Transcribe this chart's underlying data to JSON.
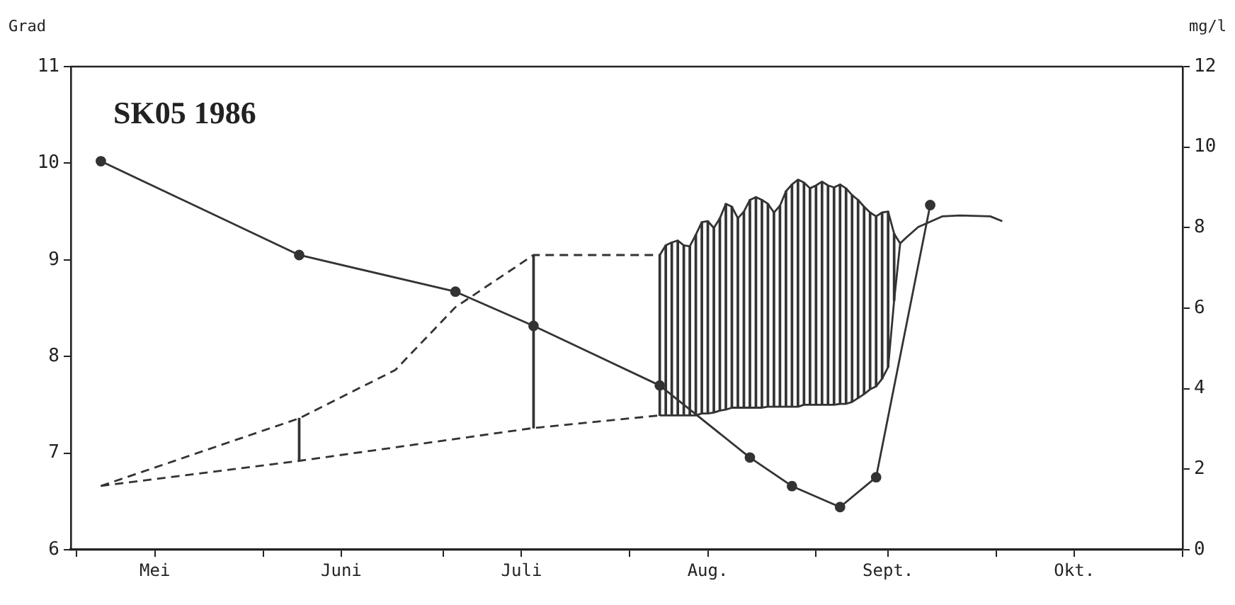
{
  "chart_data": {
    "type": "line",
    "title": "SK05 1986",
    "ylabel": "Grad",
    "y2label": "mg/l",
    "xlim": [
      "1986-04-30",
      "1986-11-01"
    ],
    "xticks": [
      {
        "value": "1986-05-01",
        "label": null
      },
      {
        "value": "1986-05-14",
        "label": "Mei"
      },
      {
        "value": "1986-06-01",
        "label": null
      },
      {
        "value": "1986-06-14",
        "label": "Juni"
      },
      {
        "value": "1986-07-01",
        "label": null
      },
      {
        "value": "1986-07-14",
        "label": "Juli"
      },
      {
        "value": "1986-08-01",
        "label": null
      },
      {
        "value": "1986-08-14",
        "label": "Aug."
      },
      {
        "value": "1986-09-01",
        "label": null
      },
      {
        "value": "1986-09-13",
        "label": "Sept."
      },
      {
        "value": "1986-10-01",
        "label": null
      },
      {
        "value": "1986-10-14",
        "label": "Okt."
      },
      {
        "value": "1986-11-01",
        "label": null
      }
    ],
    "ylim": [
      6,
      11
    ],
    "yticks": [
      6,
      7,
      8,
      9,
      10,
      11
    ],
    "y2lim": [
      0,
      12
    ],
    "y2ticks": [
      0,
      2,
      4,
      6,
      8,
      10,
      12
    ],
    "legend": false,
    "series": [
      {
        "type": "bar",
        "color": "#333333",
        "x": [
          "1986-06-07",
          "1986-07-16",
          "1986-08-06",
          "1986-08-07",
          "1986-08-08",
          "1986-08-09",
          "1986-08-10",
          "1986-08-11",
          "1986-08-12",
          "1986-08-13",
          "1986-08-14",
          "1986-08-15",
          "1986-08-16",
          "1986-08-17",
          "1986-08-18",
          "1986-08-19",
          "1986-08-20",
          "1986-08-21",
          "1986-08-22",
          "1986-08-23",
          "1986-08-24",
          "1986-08-25",
          "1986-08-26",
          "1986-08-27",
          "1986-08-28",
          "1986-08-29",
          "1986-08-30",
          "1986-08-31",
          "1986-09-01",
          "1986-09-02",
          "1986-09-03",
          "1986-09-04",
          "1986-09-05",
          "1986-09-06",
          "1986-09-07",
          "1986-09-08",
          "1986-09-09",
          "1986-09-10",
          "1986-09-11",
          "1986-09-12",
          "1986-09-13",
          "1986-09-14"
        ],
        "base": [
          6.92,
          7.26,
          7.39,
          7.39,
          7.39,
          7.39,
          7.39,
          7.39,
          7.39,
          7.41,
          7.41,
          7.42,
          7.44,
          7.45,
          7.47,
          7.47,
          7.47,
          7.47,
          7.47,
          7.47,
          7.48,
          7.48,
          7.48,
          7.48,
          7.48,
          7.48,
          7.5,
          7.5,
          7.5,
          7.5,
          7.5,
          7.5,
          7.51,
          7.51,
          7.53,
          7.57,
          7.61,
          7.66,
          7.69,
          7.77,
          7.89,
          8.58
        ],
        "values": [
          0.44,
          1.79,
          1.66,
          1.76,
          1.79,
          1.81,
          1.76,
          1.75,
          1.87,
          1.98,
          1.99,
          1.91,
          1.99,
          2.13,
          2.08,
          1.96,
          2.03,
          2.15,
          2.18,
          2.15,
          2.1,
          2.01,
          2.08,
          2.23,
          2.3,
          2.35,
          2.3,
          2.24,
          2.27,
          2.31,
          2.27,
          2.25,
          2.27,
          2.23,
          2.14,
          2.05,
          1.94,
          1.83,
          1.76,
          1.72,
          1.61,
          0.69
        ]
      },
      {
        "color": "#333333",
        "line_style": "dashed",
        "marker": "none",
        "x": [
          "1986-05-05",
          "1986-06-07",
          "1986-06-23",
          "1986-07-03",
          "1986-07-16",
          "1986-08-06"
        ],
        "values": [
          6.66,
          7.36,
          7.86,
          8.51,
          9.05,
          9.05
        ]
      },
      {
        "color": "#333333",
        "line_style": "dashed",
        "marker": "none",
        "x": [
          "1986-05-05",
          "1986-06-07",
          "1986-07-16",
          "1986-08-06"
        ],
        "values": [
          6.66,
          6.92,
          7.26,
          7.39
        ]
      },
      {
        "color": "#333333",
        "line_style": "solid",
        "marker": "none",
        "x": [
          "1986-08-06",
          "1986-08-07",
          "1986-08-08",
          "1986-08-09",
          "1986-08-10",
          "1986-08-11",
          "1986-08-12",
          "1986-08-13",
          "1986-08-14",
          "1986-08-15",
          "1986-08-16",
          "1986-08-17",
          "1986-08-18",
          "1986-08-19",
          "1986-08-20",
          "1986-08-21",
          "1986-08-22",
          "1986-08-23",
          "1986-08-24",
          "1986-08-25",
          "1986-08-26",
          "1986-08-27",
          "1986-08-28",
          "1986-08-29",
          "1986-08-30",
          "1986-08-31",
          "1986-09-01",
          "1986-09-02",
          "1986-09-03",
          "1986-09-04",
          "1986-09-05",
          "1986-09-06",
          "1986-09-07",
          "1986-09-08",
          "1986-09-09",
          "1986-09-10",
          "1986-09-11",
          "1986-09-12",
          "1986-09-13",
          "1986-09-14",
          "1986-09-15",
          "1986-09-16",
          "1986-09-18",
          "1986-09-22",
          "1986-09-25",
          "1986-09-30",
          "1986-10-02"
        ],
        "values": [
          9.05,
          9.15,
          9.18,
          9.2,
          9.15,
          9.14,
          9.26,
          9.39,
          9.4,
          9.33,
          9.43,
          9.58,
          9.55,
          9.43,
          9.5,
          9.62,
          9.65,
          9.62,
          9.58,
          9.49,
          9.56,
          9.71,
          9.78,
          9.83,
          9.8,
          9.74,
          9.77,
          9.81,
          9.77,
          9.75,
          9.78,
          9.74,
          9.67,
          9.62,
          9.55,
          9.49,
          9.45,
          9.49,
          9.5,
          9.27,
          9.17,
          9.23,
          9.34,
          9.45,
          9.46,
          9.45,
          9.4
        ]
      },
      {
        "color": "#333333",
        "line_style": "solid",
        "marker": "none",
        "x": [
          "1986-08-06",
          "1986-08-07",
          "1986-08-08",
          "1986-08-09",
          "1986-08-10",
          "1986-08-11",
          "1986-08-12",
          "1986-08-13",
          "1986-08-14",
          "1986-08-15",
          "1986-08-16",
          "1986-08-17",
          "1986-08-18",
          "1986-08-19",
          "1986-08-20",
          "1986-08-21",
          "1986-08-22",
          "1986-08-23",
          "1986-08-24",
          "1986-08-25",
          "1986-08-26",
          "1986-08-27",
          "1986-08-28",
          "1986-08-29",
          "1986-08-30",
          "1986-08-31",
          "1986-09-01",
          "1986-09-02",
          "1986-09-03",
          "1986-09-04",
          "1986-09-05",
          "1986-09-06",
          "1986-09-07",
          "1986-09-08",
          "1986-09-09",
          "1986-09-10",
          "1986-09-11",
          "1986-09-12",
          "1986-09-13",
          "1986-09-14",
          "1986-09-15"
        ],
        "values": [
          7.39,
          7.39,
          7.39,
          7.39,
          7.39,
          7.39,
          7.39,
          7.41,
          7.41,
          7.42,
          7.44,
          7.45,
          7.47,
          7.47,
          7.47,
          7.47,
          7.47,
          7.47,
          7.48,
          7.48,
          7.48,
          7.48,
          7.48,
          7.48,
          7.5,
          7.5,
          7.5,
          7.5,
          7.5,
          7.5,
          7.51,
          7.51,
          7.53,
          7.57,
          7.61,
          7.66,
          7.69,
          7.77,
          7.89,
          8.58,
          9.17
        ]
      },
      {
        "color": "#333333",
        "line_style": "solid",
        "marker": "circle",
        "axis": "y2",
        "x": [
          "1986-05-05",
          "1986-06-07",
          "1986-07-03",
          "1986-07-16",
          "1986-08-06",
          "1986-08-21",
          "1986-08-28",
          "1986-09-05",
          "1986-09-11",
          "1986-09-20"
        ],
        "values": [
          9.65,
          7.32,
          6.41,
          5.56,
          4.08,
          2.29,
          1.58,
          1.06,
          1.8,
          8.56
        ]
      }
    ]
  }
}
